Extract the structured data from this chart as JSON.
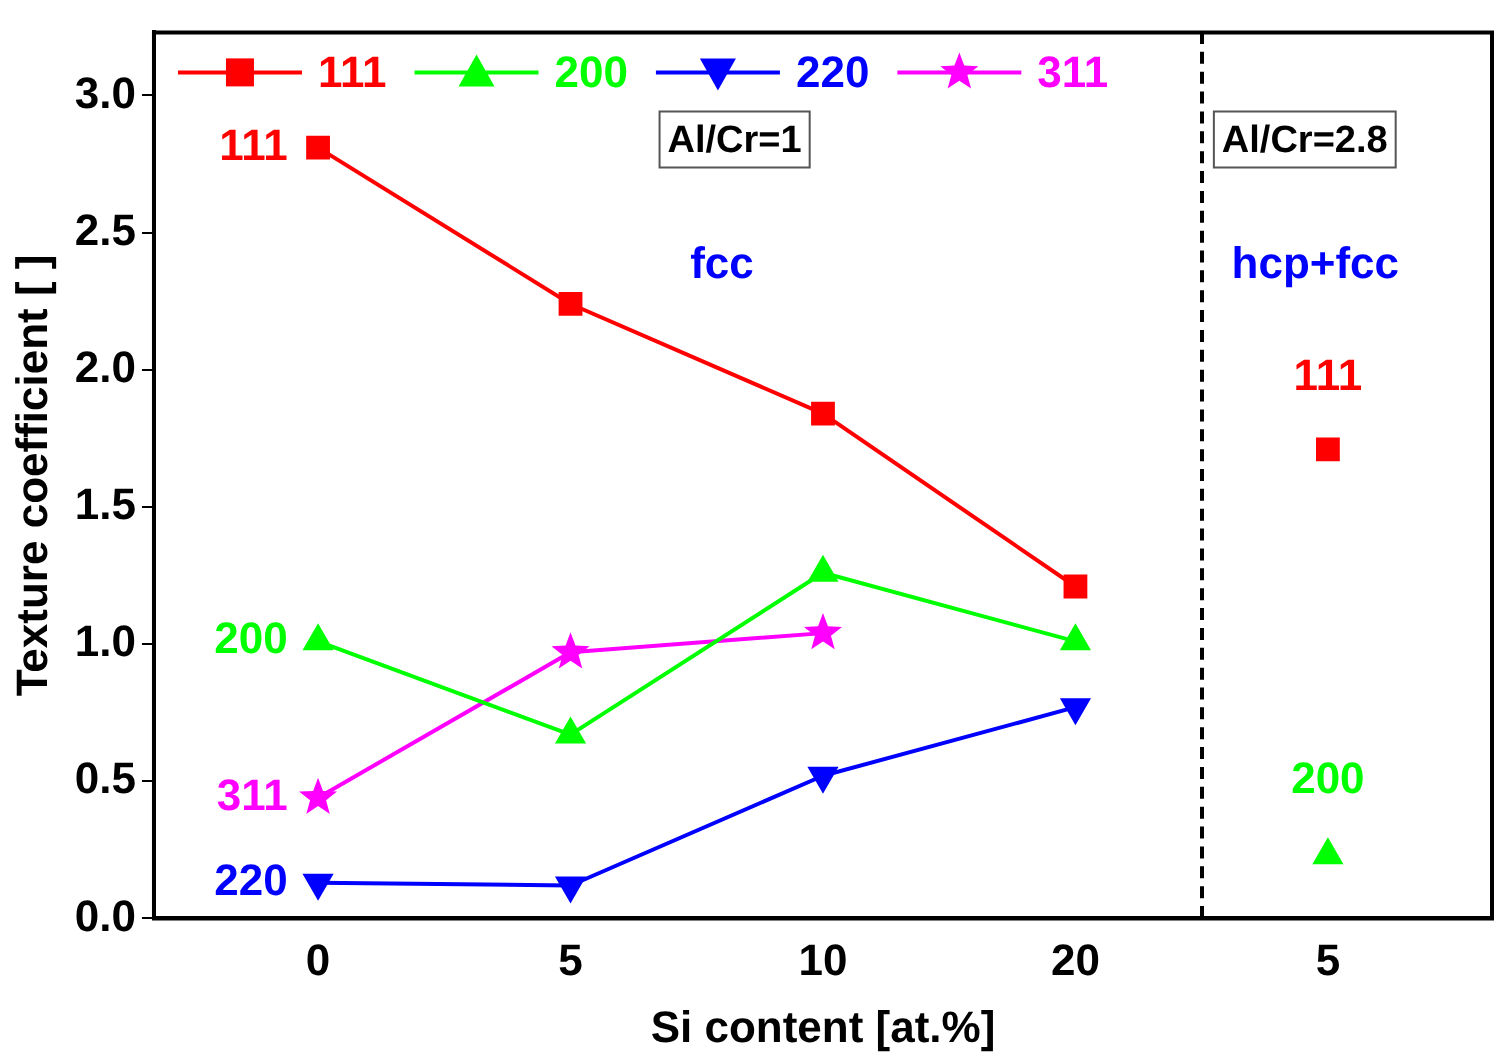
{
  "chart_data": {
    "type": "line",
    "xlabel": "Si content [at.%]",
    "ylabel": "Texture coefficient [ ]",
    "categories": [
      "0",
      "5",
      "10",
      "20",
      "5"
    ],
    "series": [
      {
        "name": "111",
        "color": "#ff0000",
        "marker": "square",
        "values": [
          2.81,
          2.24,
          1.84,
          1.21,
          null
        ]
      },
      {
        "name": "200",
        "color": "#00ff00",
        "marker": "triangle",
        "values": [
          1.01,
          0.67,
          1.26,
          1.01,
          null
        ]
      },
      {
        "name": "220",
        "color": "#0000ff",
        "marker": "triangle-down",
        "values": [
          0.13,
          0.12,
          0.52,
          0.77,
          null
        ]
      },
      {
        "name": "311",
        "color": "#ff00ff",
        "marker": "star",
        "values": [
          0.44,
          0.97,
          1.04,
          null,
          null
        ]
      },
      {
        "type": "scatter",
        "color": "#ff0000",
        "marker": "square",
        "values": [
          null,
          null,
          null,
          null,
          1.71
        ]
      },
      {
        "type": "scatter",
        "color": "#00ff00",
        "marker": "triangle",
        "values": [
          null,
          null,
          null,
          null,
          0.23
        ]
      }
    ],
    "ylim": [
      0,
      3.23
    ],
    "yticks": [
      {
        "value": 0,
        "label": "0.0"
      },
      {
        "value": 0.5,
        "label": "0.5"
      },
      {
        "value": 1,
        "label": "1.0"
      },
      {
        "value": 1.5,
        "label": "1.5"
      },
      {
        "value": 2,
        "label": "2.0"
      },
      {
        "value": 2.5,
        "label": "2.5"
      },
      {
        "value": 3,
        "label": "3.0"
      }
    ],
    "legend": "top left",
    "grid": false,
    "annotations": [
      "111",
      "200",
      "311",
      "220",
      "Al/Cr=1",
      "fcc",
      "Al/Cr=2.8",
      "hcp+fcc",
      "111",
      "200"
    ]
  }
}
